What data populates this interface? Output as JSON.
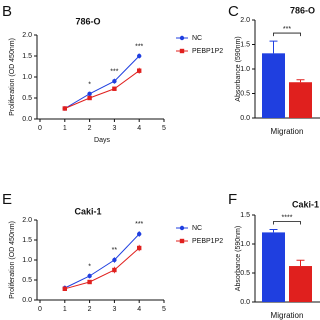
{
  "chart_data": [
    {
      "type": "line",
      "label": "B",
      "title": "786-O",
      "xlabel": "Days",
      "ylabel": "Proliferation (OD 450nm)",
      "x": [
        1,
        2,
        3,
        4
      ],
      "series": [
        {
          "name": "NC",
          "color": "#1f3fe0",
          "values": [
            0.25,
            0.6,
            0.9,
            1.5
          ],
          "errors": [
            0.03,
            0.05,
            0.06,
            0.06
          ]
        },
        {
          "name": "PEBP1P2",
          "color": "#e0201e",
          "values": [
            0.25,
            0.5,
            0.72,
            1.15
          ],
          "errors": [
            0.03,
            0.04,
            0.04,
            0.07
          ]
        }
      ],
      "annotations": [
        {
          "text": "*",
          "x": 2
        },
        {
          "text": "***",
          "x": 3
        },
        {
          "text": "***",
          "x": 4
        }
      ],
      "xlim": [
        0,
        5
      ],
      "xticks": [
        0,
        1,
        2,
        3,
        4,
        5
      ],
      "ylim": [
        0,
        2
      ],
      "yticks": [
        {
          "value": 0,
          "label": "0.0"
        },
        0.5,
        {
          "value": 1,
          "label": "1.0"
        },
        1.5,
        {
          "value": 2,
          "label": "2.0"
        }
      ]
    },
    {
      "type": "bar",
      "label": "C",
      "title": "786-O",
      "ylabel": "Absorbance (590nm)",
      "categories": [
        "Migration"
      ],
      "series": [
        {
          "color": "#1f3fe0",
          "values": [
            1.32
          ],
          "errors": [
            0.25
          ]
        },
        {
          "color": "#e0201e",
          "values": [
            0.73
          ],
          "errors": [
            0.05
          ]
        }
      ],
      "annotations": [
        {
          "text": "***",
          "x": "Migration"
        }
      ],
      "ylim": [
        0,
        2
      ],
      "yticks": [
        {
          "value": 0,
          "label": "0.0"
        },
        0.5,
        {
          "value": 1,
          "label": "1.0"
        },
        1.5,
        {
          "value": 2,
          "label": "2.0"
        }
      ]
    },
    {
      "type": "line",
      "label": "E",
      "title": "Caki-1",
      "ylabel": "Proliferation (OD 450nm)",
      "x": [
        1,
        2,
        3,
        4
      ],
      "series": [
        {
          "name": "NC",
          "color": "#1f3fe0",
          "values": [
            0.3,
            0.6,
            1.0,
            1.65
          ],
          "errors": [
            0.06,
            0.06,
            0.07,
            0.07
          ]
        },
        {
          "name": "PEBP1P2",
          "color": "#e0201e",
          "values": [
            0.28,
            0.45,
            0.75,
            1.3
          ],
          "errors": [
            0.05,
            0.05,
            0.08,
            0.08
          ]
        }
      ],
      "annotations": [
        {
          "text": "*",
          "x": 2
        },
        {
          "text": "**",
          "x": 3
        },
        {
          "text": "***",
          "x": 4
        }
      ],
      "xlim": [
        0,
        5
      ],
      "xticks": [
        0,
        1,
        2,
        3,
        4,
        5
      ],
      "ylim": [
        0,
        2
      ],
      "yticks": [
        {
          "value": 0,
          "label": "0.0"
        },
        0.5,
        {
          "value": 1,
          "label": "1.0"
        },
        1.5,
        {
          "value": 2,
          "label": "2.0"
        }
      ]
    },
    {
      "type": "bar",
      "label": "F",
      "title": "Caki-1",
      "ylabel": "Absorbance (590nm)",
      "categories": [
        "Migration"
      ],
      "series": [
        {
          "color": "#1f3fe0",
          "values": [
            1.2
          ],
          "errors": [
            0.05
          ]
        },
        {
          "color": "#e0201e",
          "values": [
            0.62
          ],
          "errors": [
            0.1
          ]
        }
      ],
      "annotations": [
        {
          "text": "****",
          "x": "Migration"
        }
      ],
      "ylim": [
        0,
        1.5
      ],
      "yticks": [
        {
          "value": 0,
          "label": "0.0"
        },
        0.5,
        {
          "value": 1,
          "label": "1.0"
        },
        1.5
      ]
    }
  ]
}
